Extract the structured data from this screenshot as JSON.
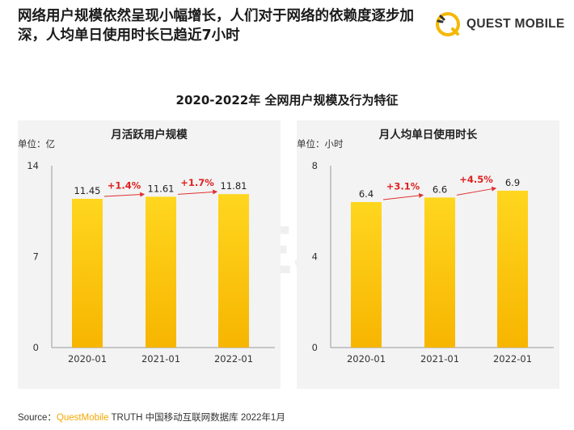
{
  "header": {
    "title": "网络用户规模依然呈现小幅增长，人们对于网络的依赖度逐步加深，人均单日使用时长已趋近7小时",
    "logo_text": "QUEST MOBILE"
  },
  "main_title": "2020-2022年 全网用户规模及行为特征",
  "panels": [
    {
      "title": "月活跃用户规模",
      "unit": "单位：亿"
    },
    {
      "title": "月人均单日使用时长",
      "unit": "单位：小时"
    }
  ],
  "footer": {
    "prefix": "Source：",
    "brand": "QuestMobile",
    "rest": " TRUTH 中国移动互联网数据库 2022年1月"
  },
  "watermark_text": "QUESTMOBILE",
  "colors": {
    "bar_top": "#ffd61f",
    "bar_bottom": "#f7b500",
    "growth_text": "#e02020",
    "arrow": "#e03030",
    "accent": "#f5a800"
  },
  "chart_data": [
    {
      "type": "bar",
      "title": "月活跃用户规模",
      "unit": "亿",
      "categories": [
        "2020-01",
        "2021-01",
        "2022-01"
      ],
      "values": [
        11.45,
        11.61,
        11.81
      ],
      "value_labels": [
        "11.45",
        "11.61",
        "11.81"
      ],
      "growth_labels": [
        "+1.4%",
        "+1.7%"
      ],
      "yticks": [
        0,
        7,
        14
      ],
      "ylim": [
        0,
        14
      ]
    },
    {
      "type": "bar",
      "title": "月人均单日使用时长",
      "unit": "小时",
      "categories": [
        "2020-01",
        "2021-01",
        "2022-01"
      ],
      "values": [
        6.4,
        6.6,
        6.9
      ],
      "value_labels": [
        "6.4",
        "6.6",
        "6.9"
      ],
      "growth_labels": [
        "+3.1%",
        "+4.5%"
      ],
      "yticks": [
        0,
        4,
        8
      ],
      "ylim": [
        0,
        8
      ]
    }
  ]
}
